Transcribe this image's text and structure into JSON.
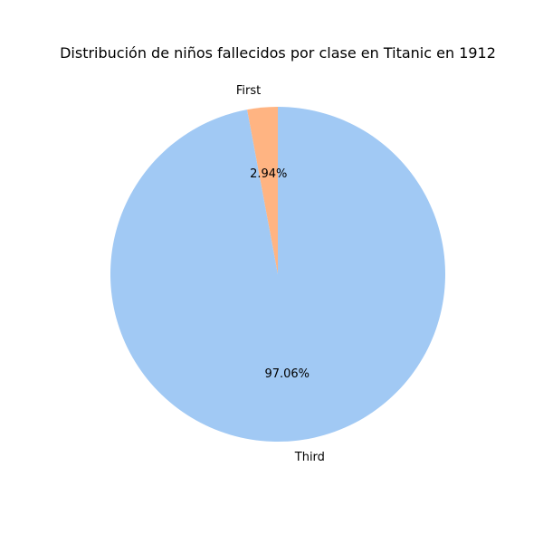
{
  "chart_data": {
    "type": "pie",
    "title": "Distribución de niños fallecidos por clase en Titanic en 1912",
    "slices": [
      {
        "label": "First",
        "value": 2.94,
        "pct_label": "2.94%",
        "color": "#ffb482"
      },
      {
        "label": "Third",
        "value": 97.06,
        "pct_label": "97.06%",
        "color": "#a1c9f4"
      }
    ],
    "start_angle_deg": 90,
    "direction": "counterclockwise",
    "legend": "none"
  }
}
